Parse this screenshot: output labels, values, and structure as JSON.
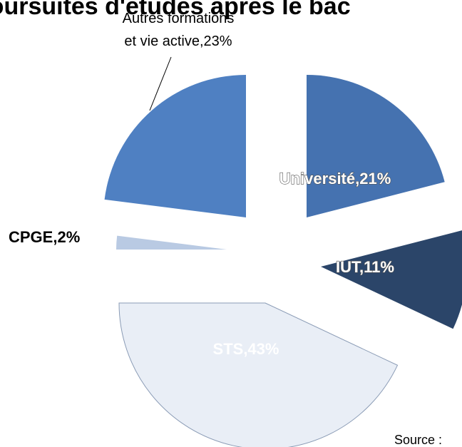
{
  "chart_data": {
    "type": "pie",
    "title": "Poursuites d'études après le bac",
    "labels": [
      "Université,21%",
      "IUT,11%",
      "STS,43%",
      "CPGE,2%",
      "Autres formations et vie active,23%"
    ],
    "values": [
      21,
      11,
      43,
      2,
      23
    ],
    "colors": [
      "#4572b0",
      "#2b4569",
      "#e9eef6",
      "#b9cae3",
      "#4f80c2"
    ],
    "source": "Source :"
  }
}
